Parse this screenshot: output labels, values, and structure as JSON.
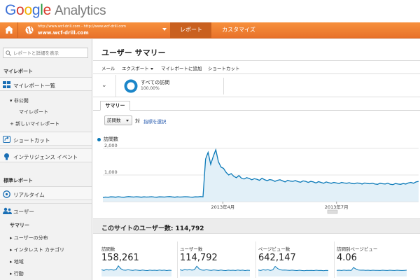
{
  "brand": {
    "logo_letters": [
      "G",
      "o",
      "o",
      "g",
      "l",
      "e"
    ],
    "product": "Analytics"
  },
  "nav": {
    "home_icon": "home-icon",
    "account": {
      "url_small": "http://www.wcf-drill.com - http://www.wcf-drill.com",
      "url_main": "www.wcf-drill.com"
    },
    "tabs": [
      {
        "label": "レポート",
        "active": true
      },
      {
        "label": "カスタマイズ",
        "active": false
      }
    ],
    "accent_color": "#f28b35"
  },
  "sidebar": {
    "search_placeholder": "レポートと詳細を表示",
    "my_reports_heading": "マイレポート",
    "my_reports_list_label": "マイレポート一覧",
    "private_label": "▾ 非公開",
    "my_report_label": "マイレポート",
    "new_report_label": "+ 新しいマイレポート",
    "shortcuts_label": "ショートカット",
    "intelligence_label": "インテリジェンス イベント",
    "standard_heading": "標準レポート",
    "realtime_label": "リアルタイム",
    "users_label": "ユーザー",
    "users_sub": [
      {
        "label": "サマリー",
        "bold": true
      },
      {
        "label": "▸ ユーザーの分布",
        "bold": false
      },
      {
        "label": "▸ インタレスト カテゴリ",
        "bold": false
      },
      {
        "label": "▸ 地域",
        "bold": false
      },
      {
        "label": "▸ 行動",
        "bold": false
      }
    ]
  },
  "main": {
    "title": "ユーザー サマリー",
    "actions": [
      {
        "label": "メール",
        "dropdown": false
      },
      {
        "label": "エクスポート",
        "dropdown": true
      },
      {
        "label": "マイレポートに追加",
        "dropdown": false
      },
      {
        "label": "ショートカット",
        "dropdown": false
      }
    ],
    "segment": {
      "name": "すべての訪問",
      "percent": "100.00%"
    },
    "tab_label": "サマリー",
    "metric_select": "訪問数",
    "vs_label": "対",
    "choose_metric": "指標を選択",
    "summary_title": "このサイトのユーザー数: 114,792",
    "metrics": [
      {
        "label": "訪問数",
        "value": "158,261"
      },
      {
        "label": "ユーザー数",
        "value": "114,792"
      },
      {
        "label": "ページビュー数",
        "value": "642,147"
      },
      {
        "label": "訪問別ページビュー",
        "value": "4.06"
      }
    ]
  },
  "chart_data": {
    "type": "area",
    "series": [
      {
        "name": "訪問数",
        "color": "#0a79b8",
        "values": [
          150,
          170,
          160,
          180,
          175,
          165,
          185,
          170,
          160,
          175,
          190,
          180,
          170,
          185,
          175,
          165,
          180,
          170,
          175,
          185,
          170,
          165,
          180,
          175,
          170,
          185,
          190,
          175,
          165,
          180,
          170,
          175,
          185,
          180,
          170,
          165,
          180,
          175,
          190,
          180,
          1600,
          1850,
          1400,
          1700,
          1950,
          1500,
          1300,
          1250,
          1100,
          1000,
          1050,
          950,
          900,
          980,
          880,
          850,
          900,
          870,
          820,
          860,
          840,
          800,
          880,
          820,
          790,
          830,
          810,
          760,
          800,
          820,
          780,
          740,
          800,
          770,
          760,
          790,
          750,
          730,
          780,
          760,
          720,
          760,
          740,
          700,
          750,
          720,
          690,
          740,
          710,
          690,
          720,
          700,
          680,
          720,
          700,
          690,
          710,
          680,
          670,
          700,
          690,
          660,
          700,
          680,
          670,
          690,
          660,
          650,
          690,
          670,
          660,
          690,
          650,
          640,
          680,
          660,
          650,
          680,
          660,
          700,
          720,
          690,
          740,
          760
        ]
      }
    ],
    "x_ticks": [
      "2013年4月",
      "2013年7月"
    ],
    "y_ticks": [
      "2,000",
      "1,000"
    ],
    "ylim": [
      0,
      2000
    ],
    "sparklines": [
      [
        60,
        55,
        62,
        58,
        61,
        57,
        60,
        95,
        70,
        58,
        56,
        60,
        57,
        55,
        59,
        56,
        54,
        58,
        55,
        53,
        57,
        55,
        56,
        54,
        58,
        55,
        57,
        53,
        56,
        55
      ],
      [
        60,
        55,
        62,
        58,
        61,
        57,
        60,
        92,
        68,
        58,
        56,
        60,
        57,
        55,
        59,
        56,
        54,
        58,
        55,
        53,
        57,
        55,
        56,
        54,
        58,
        55,
        57,
        53,
        56,
        55
      ],
      [
        58,
        54,
        60,
        57,
        60,
        55,
        59,
        90,
        72,
        60,
        57,
        58,
        56,
        55,
        57,
        55,
        53,
        56,
        54,
        52,
        55,
        54,
        55,
        53,
        56,
        54,
        55,
        52,
        55,
        54
      ],
      [
        55,
        56,
        54,
        57,
        55,
        56,
        54,
        80,
        66,
        58,
        56,
        57,
        55,
        56,
        54,
        56,
        55,
        55,
        54,
        56,
        55,
        54,
        56,
        55,
        54,
        56,
        55,
        54,
        55,
        56
      ]
    ]
  }
}
